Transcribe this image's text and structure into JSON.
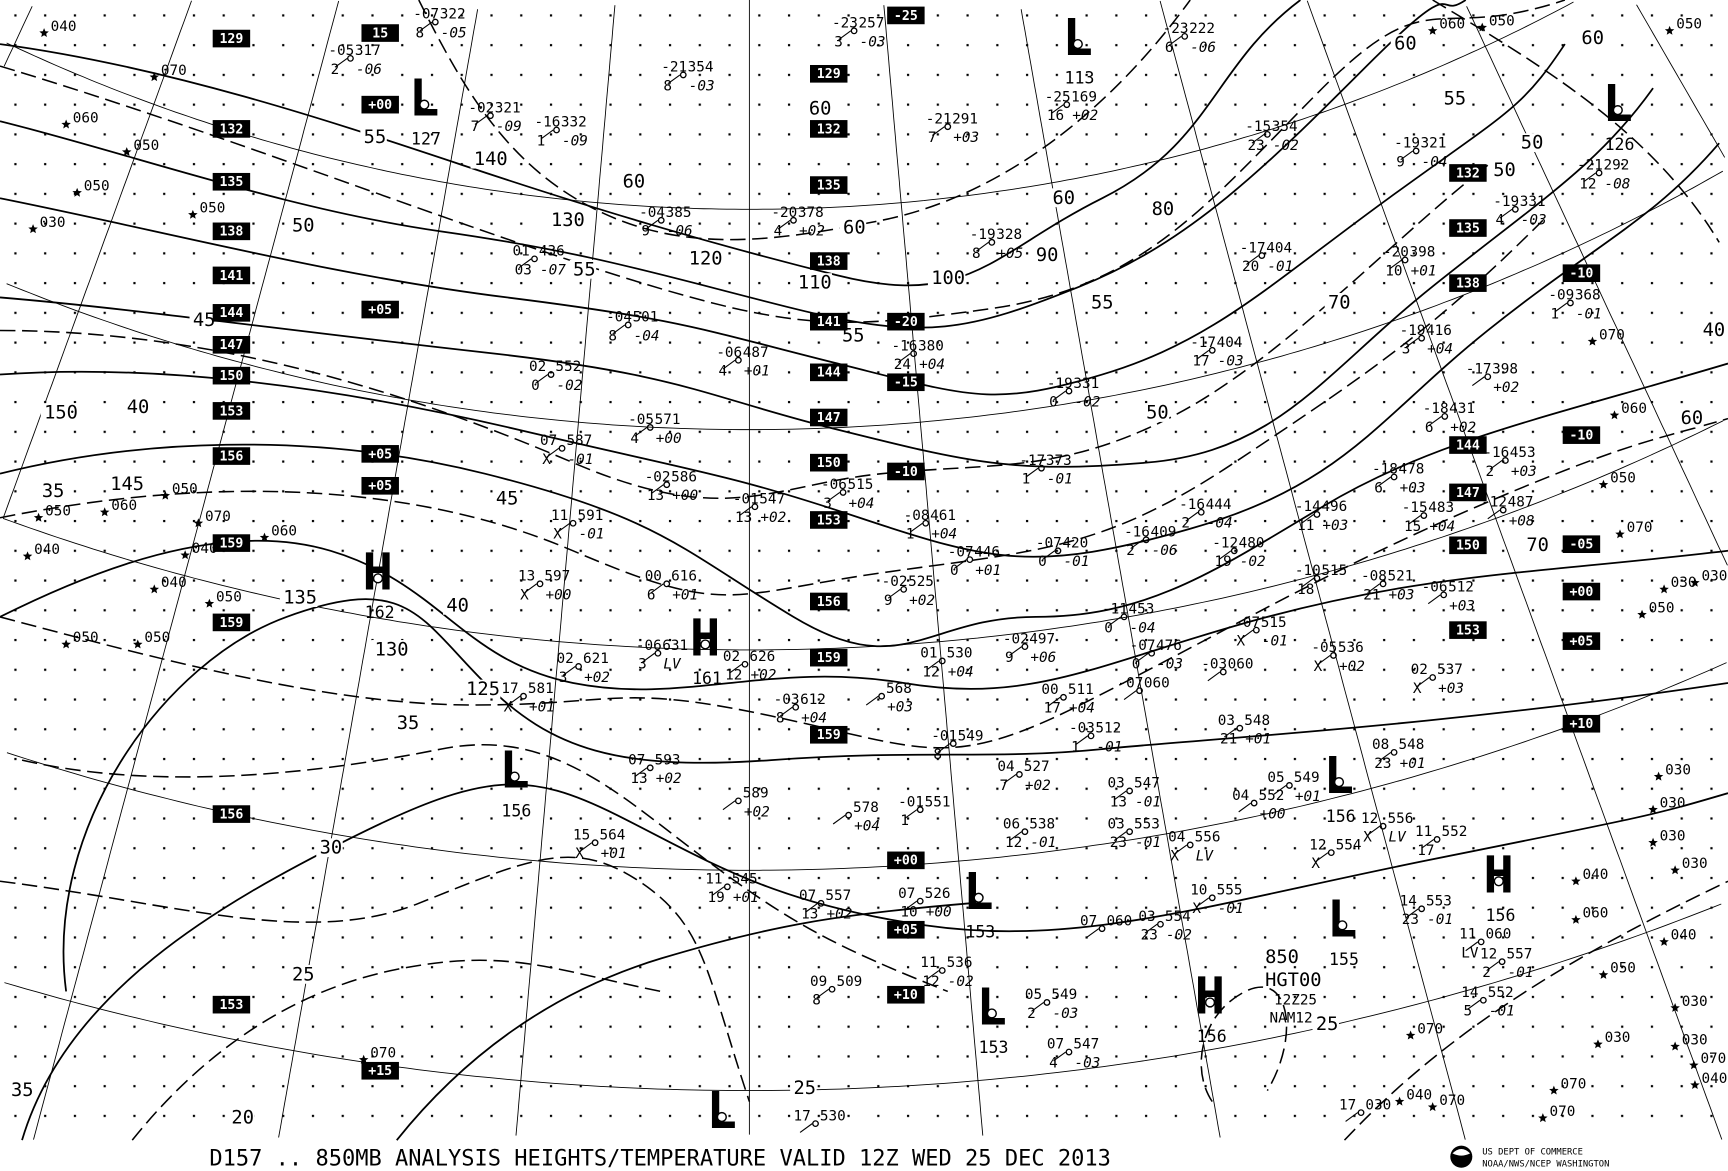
{
  "footer": {
    "title": "D157 .. 850MB   ANALYSIS  HEIGHTS/TEMPERATURE VALID 12Z WED 25 DEC 2013",
    "agency_line1": "US DEPT OF COMMERCE",
    "agency_line2": "NOAA/NWS/NCEP WASHINGTON"
  },
  "map_label": {
    "level": "850",
    "field": "HGT00",
    "time": "12Z25",
    "model": "NAM12"
  },
  "centers": [
    {
      "type": "L",
      "value": "127"
    },
    {
      "type": "L",
      "value": "113"
    },
    {
      "type": "L",
      "value": "126"
    },
    {
      "type": "H",
      "value": "162"
    },
    {
      "type": "H",
      "value": "161"
    },
    {
      "type": "L",
      "value": "156"
    },
    {
      "type": "L",
      "value": "156"
    },
    {
      "type": "L",
      "value": "153"
    },
    {
      "type": "L",
      "value": "155"
    },
    {
      "type": "H",
      "value": "156"
    },
    {
      "type": "H",
      "value": "156"
    },
    {
      "type": "L",
      "value": "153"
    },
    {
      "type": "L",
      "value": ""
    }
  ],
  "boxed_labels": [
    "129",
    "132",
    "135",
    "138",
    "141",
    "144",
    "147",
    "150",
    "153",
    "156",
    "159",
    "159",
    "156",
    "153",
    "+00",
    "+05",
    "+05",
    "+05",
    "+15",
    "-25",
    "129",
    "132",
    "135",
    "138",
    "141",
    "144",
    "147",
    "150",
    "153",
    "156",
    "159",
    "159",
    "-20",
    "-15",
    "-10",
    "+00",
    "+05",
    "+10",
    "132",
    "135",
    "138",
    "144",
    "147",
    "150",
    "153",
    "-10",
    "-10",
    "-05",
    "+00",
    "+05",
    "+10",
    "15"
  ],
  "contour_labels": [
    "55",
    "60",
    "50",
    "45",
    "40",
    "35",
    "150",
    "145",
    "140",
    "130",
    "120",
    "110",
    "100",
    "90",
    "80",
    "70",
    "60",
    "55",
    "50",
    "60",
    "55",
    "50",
    "55",
    "55",
    "60",
    "60",
    "45",
    "40",
    "135",
    "130",
    "125",
    "35",
    "30",
    "25",
    "20",
    "35",
    "25",
    "25",
    "60",
    "40",
    "50",
    "60",
    "70"
  ],
  "stations": [
    [
      "-07",
      "322",
      "8",
      "-05"
    ],
    [
      "-05",
      "317",
      "2",
      "-06"
    ],
    [
      "-02",
      "321",
      "7",
      "-09"
    ],
    [
      "-16",
      "332",
      "1",
      "-09"
    ],
    [
      "-23",
      "257",
      "3",
      "-03"
    ],
    [
      "-21",
      "354",
      "8",
      "-03"
    ],
    [
      "-25",
      "169",
      "16",
      "+02"
    ],
    [
      "-23",
      "222",
      "6",
      "-06"
    ],
    [
      "-21",
      "291",
      "7",
      "+03"
    ],
    [
      "-15",
      "354",
      "23",
      "-02"
    ],
    [
      "-19",
      "321",
      "9",
      "-04"
    ],
    [
      "-21",
      "292",
      "12",
      "-08"
    ],
    [
      "-19",
      "331",
      "4",
      "-03"
    ],
    [
      "-04",
      "385",
      "9",
      "-06"
    ],
    [
      "-20",
      "378",
      "4",
      "+02"
    ],
    [
      "-19",
      "328",
      "8",
      "+05"
    ],
    [
      "-17",
      "404",
      "20",
      "-01"
    ],
    [
      "-20",
      "398",
      "10",
      "+01"
    ],
    [
      "-09",
      "368",
      "1",
      "-01"
    ],
    [
      "01",
      "436",
      "03",
      "-07"
    ],
    [
      "-04",
      "501",
      "8",
      "-04"
    ],
    [
      "-06",
      "487",
      "4",
      "+01"
    ],
    [
      "-16",
      "380",
      "24",
      "+04"
    ],
    [
      "-17",
      "404",
      "17",
      "-03"
    ],
    [
      "-19",
      "416",
      "3",
      "+04"
    ],
    [
      "-17",
      "398",
      "",
      "+02"
    ],
    [
      "02",
      "552",
      "0",
      "-02"
    ],
    [
      "-19",
      "331",
      "0",
      "-02"
    ],
    [
      "-05",
      "571",
      "4",
      "+00"
    ],
    [
      "-18",
      "431",
      "6",
      "+02"
    ],
    [
      "07",
      "587",
      "X",
      "-01"
    ],
    [
      "-17",
      "373",
      "1",
      "-01"
    ],
    [
      "-16",
      "453",
      "2",
      "+03"
    ],
    [
      "-02",
      "586",
      "13",
      "+00"
    ],
    [
      "-01",
      "547",
      "13",
      "+02"
    ],
    [
      "-06",
      "515",
      "3",
      "+04"
    ],
    [
      "-18",
      "478",
      "6",
      "+03"
    ],
    [
      "-15",
      "483",
      "15",
      "+04"
    ],
    [
      "-12",
      "487",
      "",
      "+08"
    ],
    [
      "11",
      "591",
      "X",
      "-01"
    ],
    [
      "-16",
      "444",
      "2",
      "-04"
    ],
    [
      "-14",
      "496",
      "11",
      "+03"
    ],
    [
      "-08",
      "461",
      "1",
      "+04"
    ],
    [
      "-07",
      "446",
      "0",
      "+01"
    ],
    [
      "-07",
      "420",
      "0",
      "-01"
    ],
    [
      "-16",
      "409",
      "2",
      "-06"
    ],
    [
      "-12",
      "480",
      "19",
      "-02"
    ],
    [
      "13",
      "597",
      "X",
      "+00"
    ],
    [
      "00",
      "616",
      "6",
      "+01"
    ],
    [
      "-02",
      "525",
      "9",
      "+02"
    ],
    [
      "-10",
      "515",
      "18",
      ""
    ],
    [
      "-08",
      "521",
      "21",
      "+03"
    ],
    [
      "-06",
      "512",
      "",
      "+03"
    ],
    [
      "-11",
      "453",
      "0",
      "-04"
    ],
    [
      "-06",
      "631",
      "3",
      "LV"
    ],
    [
      "02",
      "626",
      "12",
      "+02"
    ],
    [
      "-07",
      "515",
      "X",
      "-01"
    ],
    [
      "-07",
      "476",
      "0",
      "-03"
    ],
    [
      "-05",
      "536",
      "X",
      "+02"
    ],
    [
      "02",
      "621",
      "3",
      "+02"
    ],
    [
      "01",
      "530",
      "12",
      "+04"
    ],
    [
      "-02",
      "497",
      "9",
      "+06"
    ],
    [
      "-03",
      "060",
      "",
      ""
    ],
    [
      "17",
      "581",
      "X",
      "+01"
    ],
    [
      "02",
      "537",
      "X",
      "+03"
    ],
    [
      "-07",
      "060",
      "",
      ""
    ],
    [
      "-03",
      "612",
      "8",
      "+04"
    ],
    [
      "",
      "568",
      "",
      "+03"
    ],
    [
      "00",
      "511",
      "17",
      "+04"
    ],
    [
      "-01",
      "549",
      "8",
      ""
    ],
    [
      "-03",
      "512",
      "1",
      "-01"
    ],
    [
      "03",
      "548",
      "21",
      "+01"
    ],
    [
      "08",
      "548",
      "23",
      "+01"
    ],
    [
      "07",
      "593",
      "13",
      "+02"
    ],
    [
      "04",
      "527",
      "7",
      "+02"
    ],
    [
      "03",
      "547",
      "13",
      "-01"
    ],
    [
      "05",
      "549",
      "",
      "+01"
    ],
    [
      "04",
      "552",
      "",
      "+00"
    ],
    [
      "",
      "589",
      "",
      "+02"
    ],
    [
      "",
      "578",
      "",
      "+04"
    ],
    [
      "-01",
      "551",
      "1",
      ""
    ],
    [
      "12",
      "556",
      "X",
      "LV"
    ],
    [
      "15",
      "564",
      "X",
      "+01"
    ],
    [
      "06",
      "538",
      "12",
      "-01"
    ],
    [
      "03",
      "553",
      "23",
      "-01"
    ],
    [
      "04",
      "556",
      "X",
      "LV"
    ],
    [
      "12",
      "554",
      "X",
      ""
    ],
    [
      "11",
      "552",
      "17",
      ""
    ],
    [
      "11",
      "545",
      "19",
      "+01"
    ],
    [
      "07",
      "557",
      "13",
      "+02"
    ],
    [
      "07",
      "526",
      "10",
      "+00"
    ],
    [
      "10",
      "555",
      "X",
      "-01"
    ],
    [
      "14",
      "553",
      "23",
      "-01"
    ],
    [
      "11",
      "060",
      "LV",
      ""
    ],
    [
      "07",
      "060",
      "",
      ""
    ],
    [
      "03",
      "554",
      "23",
      "-02"
    ],
    [
      "12",
      "557",
      "2",
      "-01"
    ],
    [
      "11",
      "536",
      "12",
      "-02"
    ],
    [
      "14",
      "552",
      "5",
      "-01"
    ],
    [
      "09",
      "509",
      "8",
      ""
    ],
    [
      "05",
      "549",
      "2",
      "-03"
    ],
    [
      "07",
      "547",
      "4",
      "-03"
    ],
    [
      "17",
      "530",
      "",
      ""
    ],
    [
      "17",
      "030",
      "",
      ""
    ]
  ],
  "height_only_stations": [
    "040",
    "070",
    "060",
    "050",
    "050",
    "030",
    "050",
    "050",
    "060",
    "040",
    "050",
    "070",
    "060",
    "040",
    "050",
    "050",
    "040",
    "050",
    "070",
    "060",
    "050",
    "050",
    "070",
    "060",
    "050",
    "070",
    "030",
    "050",
    "030",
    "030",
    "030",
    "030",
    "030",
    "040",
    "060",
    "040",
    "050",
    "030",
    "070",
    "070",
    "040",
    "070",
    "030",
    "030",
    "070",
    "070",
    "040"
  ]
}
